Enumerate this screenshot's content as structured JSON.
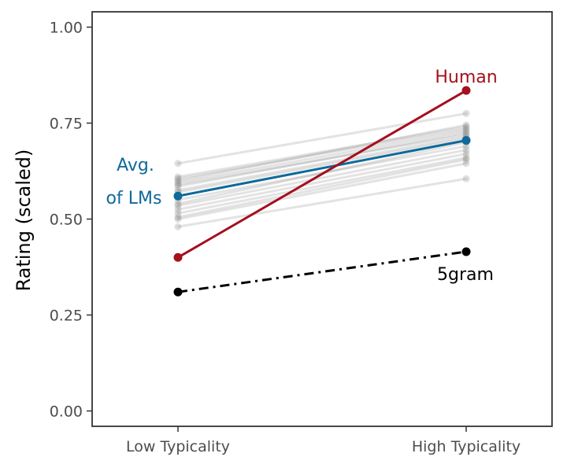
{
  "chart_data": {
    "type": "line",
    "title": "",
    "xlabel": "",
    "ylabel": "Rating (scaled)",
    "categories": [
      "Low Typicality",
      "High Typicality"
    ],
    "ylim": [
      -0.04,
      1.04
    ],
    "yticks": [
      "0.00",
      "0.25",
      "0.50",
      "0.75",
      "1.00"
    ],
    "grid": false,
    "legend": "none (direct labels)",
    "series": [
      {
        "name": "Human",
        "values": [
          0.4,
          0.835
        ],
        "color": "#a50f1e",
        "style": "solid",
        "emphasis": true
      },
      {
        "name": "Avg. of LMs",
        "values": [
          0.56,
          0.705
        ],
        "color": "#0e6a9b",
        "style": "solid",
        "emphasis": true
      },
      {
        "name": "5gram",
        "values": [
          0.31,
          0.415
        ],
        "color": "#000000",
        "style": "dashdot",
        "emphasis": true
      }
    ],
    "individual_lms": {
      "color": "#808080",
      "values": [
        [
          0.645,
          0.775
        ],
        [
          0.61,
          0.74
        ],
        [
          0.605,
          0.735
        ],
        [
          0.6,
          0.745
        ],
        [
          0.595,
          0.73
        ],
        [
          0.59,
          0.72
        ],
        [
          0.585,
          0.725
        ],
        [
          0.575,
          0.715
        ],
        [
          0.57,
          0.71
        ],
        [
          0.55,
          0.69
        ],
        [
          0.54,
          0.7
        ],
        [
          0.535,
          0.68
        ],
        [
          0.525,
          0.67
        ],
        [
          0.515,
          0.66
        ],
        [
          0.505,
          0.655
        ],
        [
          0.5,
          0.645
        ],
        [
          0.48,
          0.605
        ]
      ]
    }
  },
  "labels": {
    "human": "Human",
    "lm_avg_line1": "Avg.",
    "lm_avg_line2": "of LMs",
    "fivegram": "5gram"
  }
}
